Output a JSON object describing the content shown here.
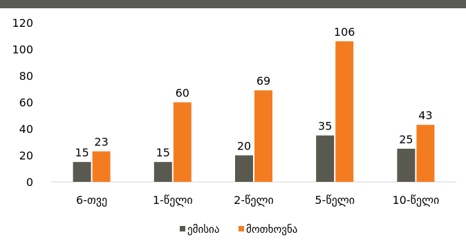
{
  "chart_data": {
    "type": "bar",
    "categories": [
      "6-თვე",
      "1-წელი",
      "2-წელი",
      "5-წელი",
      "10-წელი"
    ],
    "series": [
      {
        "name": "ემისია",
        "values": [
          15,
          15,
          20,
          35,
          25
        ],
        "color": "#595950"
      },
      {
        "name": "მოთხოვნა",
        "values": [
          23,
          60,
          69,
          106,
          43
        ],
        "color": "#f47c20"
      }
    ],
    "y_ticks": [
      "0",
      "20",
      "40",
      "60",
      "80",
      "100",
      "120"
    ],
    "ylim": [
      0,
      120
    ],
    "grid": false,
    "legend_position": "bottom",
    "title": "",
    "xlabel": "",
    "ylabel": ""
  }
}
